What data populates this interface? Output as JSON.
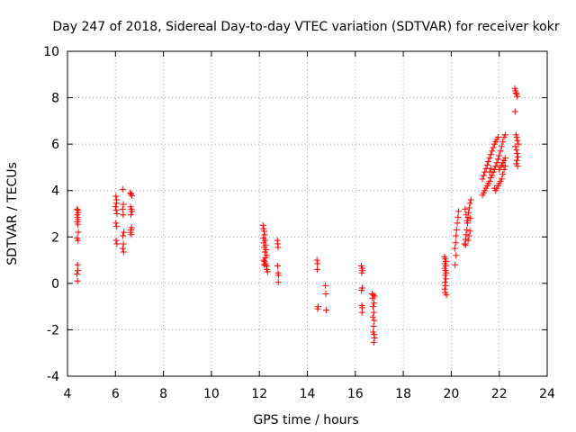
{
  "chart_data": {
    "type": "scatter",
    "title": "Day 247 of 2018, Sidereal Day-to-day VTEC variation (SDTVAR) for receiver kokr",
    "xlabel": "GPS time / hours",
    "ylabel": "SDTVAR / TECUs",
    "xlim": [
      4,
      24
    ],
    "ylim": [
      -4,
      10
    ],
    "xticks": [
      4,
      6,
      8,
      10,
      12,
      14,
      16,
      18,
      20,
      22,
      24
    ],
    "yticks": [
      -4,
      -2,
      0,
      2,
      4,
      6,
      8,
      10
    ],
    "grid": true,
    "marker": "plus",
    "series": [
      {
        "name": "SDTVAR",
        "color": "#ff0000",
        "points": [
          [
            4.4,
            3.2
          ],
          [
            4.43,
            3.15
          ],
          [
            4.45,
            3.05
          ],
          [
            4.4,
            2.95
          ],
          [
            4.42,
            2.85
          ],
          [
            4.44,
            2.75
          ],
          [
            4.41,
            2.65
          ],
          [
            4.43,
            2.55
          ],
          [
            4.45,
            2.2
          ],
          [
            4.4,
            1.95
          ],
          [
            4.44,
            1.85
          ],
          [
            4.42,
            0.8
          ],
          [
            4.43,
            0.55
          ],
          [
            4.4,
            0.4
          ],
          [
            4.42,
            0.1
          ],
          [
            6.02,
            3.75
          ],
          [
            6.05,
            3.6
          ],
          [
            6.04,
            3.45
          ],
          [
            6.0,
            3.3
          ],
          [
            6.03,
            3.15
          ],
          [
            6.06,
            3.0
          ],
          [
            6.02,
            2.6
          ],
          [
            6.05,
            2.45
          ],
          [
            6.03,
            1.85
          ],
          [
            6.06,
            1.7
          ],
          [
            6.3,
            4.05
          ],
          [
            6.33,
            3.4
          ],
          [
            6.3,
            3.2
          ],
          [
            6.32,
            2.95
          ],
          [
            6.35,
            2.2
          ],
          [
            6.31,
            2.05
          ],
          [
            6.33,
            1.7
          ],
          [
            6.3,
            1.5
          ],
          [
            6.34,
            1.35
          ],
          [
            6.62,
            3.9
          ],
          [
            6.65,
            3.85
          ],
          [
            6.68,
            3.78
          ],
          [
            6.63,
            3.3
          ],
          [
            6.66,
            3.2
          ],
          [
            6.69,
            3.1
          ],
          [
            6.64,
            2.95
          ],
          [
            6.67,
            2.4
          ],
          [
            6.65,
            2.3
          ],
          [
            6.63,
            2.2
          ],
          [
            6.66,
            2.1
          ],
          [
            12.15,
            2.5
          ],
          [
            12.18,
            2.35
          ],
          [
            12.2,
            2.25
          ],
          [
            12.22,
            2.1
          ],
          [
            12.17,
            1.95
          ],
          [
            12.24,
            1.85
          ],
          [
            12.19,
            1.75
          ],
          [
            12.26,
            1.65
          ],
          [
            12.21,
            1.55
          ],
          [
            12.28,
            1.45
          ],
          [
            12.23,
            1.35
          ],
          [
            12.3,
            1.2
          ],
          [
            12.25,
            1.1
          ],
          [
            12.18,
            1.0
          ],
          [
            12.22,
            0.95
          ],
          [
            12.26,
            0.85
          ],
          [
            12.2,
            0.8
          ],
          [
            12.29,
            0.75
          ],
          [
            12.31,
            0.6
          ],
          [
            12.34,
            0.5
          ],
          [
            12.75,
            1.85
          ],
          [
            12.77,
            1.7
          ],
          [
            12.78,
            1.55
          ],
          [
            12.76,
            0.75
          ],
          [
            12.78,
            0.45
          ],
          [
            12.8,
            0.35
          ],
          [
            12.79,
            0.05
          ],
          [
            14.4,
            1.0
          ],
          [
            14.42,
            0.85
          ],
          [
            14.41,
            0.6
          ],
          [
            14.45,
            -1.0
          ],
          [
            14.43,
            -1.1
          ],
          [
            14.75,
            -0.1
          ],
          [
            14.77,
            -0.45
          ],
          [
            14.79,
            -1.15
          ],
          [
            16.25,
            0.75
          ],
          [
            16.28,
            0.65
          ],
          [
            16.3,
            0.55
          ],
          [
            16.27,
            0.45
          ],
          [
            16.29,
            -0.2
          ],
          [
            16.26,
            -0.3
          ],
          [
            16.27,
            -0.95
          ],
          [
            16.29,
            -1.05
          ],
          [
            16.28,
            -1.25
          ],
          [
            16.7,
            -0.45
          ],
          [
            16.75,
            -0.5
          ],
          [
            16.8,
            -0.55
          ],
          [
            16.72,
            -0.65
          ],
          [
            16.78,
            -0.85
          ],
          [
            16.74,
            -1.0
          ],
          [
            16.77,
            -1.25
          ],
          [
            16.73,
            -1.45
          ],
          [
            16.79,
            -1.6
          ],
          [
            16.76,
            -1.85
          ],
          [
            16.75,
            -2.1
          ],
          [
            16.78,
            -2.2
          ],
          [
            16.8,
            -2.35
          ],
          [
            16.77,
            -2.55
          ],
          [
            19.72,
            1.15
          ],
          [
            19.75,
            1.05
          ],
          [
            19.78,
            0.95
          ],
          [
            19.74,
            0.85
          ],
          [
            19.77,
            0.75
          ],
          [
            19.73,
            0.65
          ],
          [
            19.76,
            0.55
          ],
          [
            19.79,
            0.45
          ],
          [
            19.75,
            0.35
          ],
          [
            19.78,
            0.2
          ],
          [
            19.74,
            0.05
          ],
          [
            19.76,
            -0.1
          ],
          [
            19.73,
            -0.25
          ],
          [
            19.75,
            -0.4
          ],
          [
            19.8,
            -0.5
          ],
          [
            20.15,
            1.5
          ],
          [
            20.18,
            1.75
          ],
          [
            20.2,
            2.05
          ],
          [
            20.22,
            2.3
          ],
          [
            20.25,
            2.6
          ],
          [
            20.28,
            2.85
          ],
          [
            20.3,
            3.1
          ],
          [
            20.2,
            1.2
          ],
          [
            20.16,
            0.8
          ],
          [
            20.55,
            1.7
          ],
          [
            20.6,
            1.9
          ],
          [
            20.62,
            2.1
          ],
          [
            20.65,
            2.3
          ],
          [
            20.68,
            2.6
          ],
          [
            20.7,
            2.85
          ],
          [
            20.72,
            3.05
          ],
          [
            20.75,
            3.25
          ],
          [
            20.78,
            3.45
          ],
          [
            20.82,
            3.6
          ],
          [
            20.58,
            3.2
          ],
          [
            20.62,
            2.95
          ],
          [
            20.66,
            2.7
          ],
          [
            20.7,
            1.85
          ],
          [
            20.74,
            2.05
          ],
          [
            20.78,
            2.25
          ],
          [
            20.8,
            2.8
          ],
          [
            20.6,
            1.65
          ],
          [
            21.3,
            3.8
          ],
          [
            21.35,
            3.9
          ],
          [
            21.4,
            4.0
          ],
          [
            21.45,
            4.1
          ],
          [
            21.5,
            4.2
          ],
          [
            21.55,
            4.3
          ],
          [
            21.6,
            4.4
          ],
          [
            21.65,
            4.55
          ],
          [
            21.7,
            4.65
          ],
          [
            21.75,
            4.8
          ],
          [
            21.8,
            4.9
          ],
          [
            21.85,
            5.05
          ],
          [
            21.9,
            5.2
          ],
          [
            21.95,
            5.35
          ],
          [
            22.0,
            5.5
          ],
          [
            22.05,
            5.7
          ],
          [
            22.1,
            5.9
          ],
          [
            22.15,
            6.1
          ],
          [
            22.2,
            6.3
          ],
          [
            22.25,
            6.4
          ],
          [
            21.3,
            4.5
          ],
          [
            21.35,
            4.65
          ],
          [
            21.4,
            4.8
          ],
          [
            21.45,
            4.95
          ],
          [
            21.5,
            5.1
          ],
          [
            21.55,
            5.25
          ],
          [
            21.6,
            5.4
          ],
          [
            21.65,
            5.55
          ],
          [
            21.7,
            5.7
          ],
          [
            21.75,
            5.85
          ],
          [
            21.8,
            6.0
          ],
          [
            21.85,
            6.1
          ],
          [
            21.9,
            6.2
          ],
          [
            21.95,
            6.3
          ],
          [
            21.8,
            4.1
          ],
          [
            21.85,
            4.0
          ],
          [
            21.9,
            4.1
          ],
          [
            21.95,
            4.2
          ],
          [
            22.0,
            4.3
          ],
          [
            22.05,
            4.4
          ],
          [
            22.1,
            4.5
          ],
          [
            22.15,
            4.7
          ],
          [
            22.2,
            4.9
          ],
          [
            22.25,
            5.05
          ],
          [
            22.0,
            4.9
          ],
          [
            22.05,
            5.0
          ],
          [
            22.1,
            5.1
          ],
          [
            22.15,
            5.2
          ],
          [
            22.2,
            5.3
          ],
          [
            22.25,
            5.4
          ],
          [
            21.6,
            4.8
          ],
          [
            21.65,
            4.95
          ],
          [
            22.65,
            8.4
          ],
          [
            22.68,
            8.3
          ],
          [
            22.7,
            8.2
          ],
          [
            22.73,
            8.15
          ],
          [
            22.75,
            8.05
          ],
          [
            22.66,
            7.4
          ],
          [
            22.7,
            6.4
          ],
          [
            22.73,
            6.3
          ],
          [
            22.76,
            6.15
          ],
          [
            22.8,
            6.0
          ],
          [
            22.68,
            5.9
          ],
          [
            22.72,
            5.75
          ],
          [
            22.75,
            5.6
          ],
          [
            22.78,
            5.45
          ],
          [
            22.74,
            5.3
          ],
          [
            22.71,
            5.15
          ],
          [
            22.77,
            5.05
          ]
        ]
      }
    ]
  }
}
